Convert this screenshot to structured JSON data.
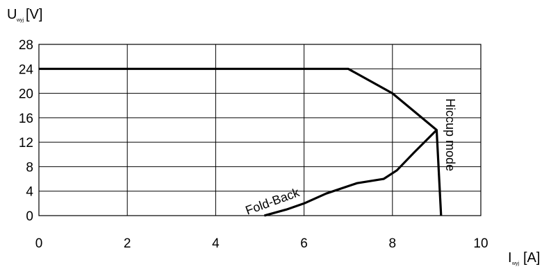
{
  "chart_data": {
    "type": "line",
    "title": "",
    "ylabel": {
      "main": "U",
      "sub": "wyj",
      "unit": "[V]"
    },
    "xlabel": {
      "main": "I",
      "sub": "wyj",
      "unit": "[A]"
    },
    "xlim": [
      0,
      10
    ],
    "ylim": [
      0,
      28
    ],
    "xticks": [
      0,
      2,
      4,
      6,
      8,
      10
    ],
    "yticks": [
      0,
      4,
      8,
      12,
      16,
      20,
      24,
      28
    ],
    "grid": true,
    "legend": "none",
    "series": [
      {
        "values": [
          [
            0,
            24
          ],
          [
            7,
            24
          ],
          [
            8,
            20
          ],
          [
            9,
            14
          ],
          [
            9.1,
            0
          ]
        ]
      },
      {
        "values": [
          [
            5.1,
            0
          ],
          [
            5.6,
            1
          ],
          [
            6,
            2
          ],
          [
            6.5,
            3.6
          ],
          [
            7.2,
            5.3
          ],
          [
            7.8,
            6
          ],
          [
            8.1,
            7.4
          ],
          [
            8.5,
            10.4
          ],
          [
            9,
            14
          ]
        ]
      }
    ],
    "annotations": [
      {
        "text": "Fold-Back"
      },
      {
        "text": "Hiccup mode"
      }
    ]
  }
}
